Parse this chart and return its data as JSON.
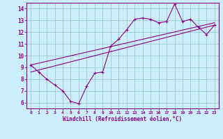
{
  "xlabel": "Windchill (Refroidissement éolien,°C)",
  "bg_color": "#cceeff",
  "grid_color": "#99cccc",
  "line_color": "#880088",
  "x_data": [
    0,
    1,
    2,
    3,
    4,
    5,
    6,
    7,
    8,
    9,
    10,
    11,
    12,
    13,
    14,
    15,
    16,
    17,
    18,
    19,
    20,
    21,
    22,
    23
  ],
  "y_curve": [
    9.2,
    8.6,
    8.0,
    7.5,
    7.0,
    6.1,
    5.9,
    7.4,
    8.5,
    8.6,
    10.8,
    11.4,
    12.2,
    13.1,
    13.2,
    13.1,
    12.8,
    12.9,
    14.4,
    12.9,
    13.1,
    12.4,
    11.8,
    12.6
  ],
  "y_line1_start": 9.2,
  "y_line1_end": 12.8,
  "y_line2_start": 8.6,
  "y_line2_end": 12.6,
  "ylim": [
    5.5,
    14.5
  ],
  "xlim": [
    -0.5,
    23.5
  ],
  "yticks": [
    6,
    7,
    8,
    9,
    10,
    11,
    12,
    13,
    14
  ],
  "xticks": [
    0,
    1,
    2,
    3,
    4,
    5,
    6,
    7,
    8,
    9,
    10,
    11,
    12,
    13,
    14,
    15,
    16,
    17,
    18,
    19,
    20,
    21,
    22,
    23
  ]
}
